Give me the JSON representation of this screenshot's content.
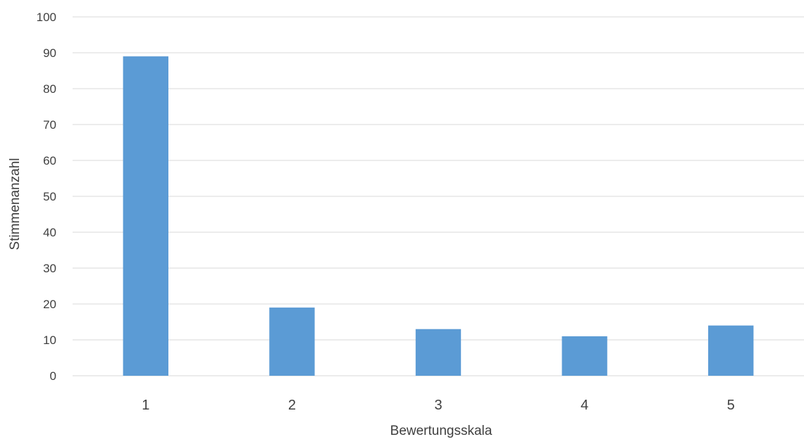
{
  "chart_data": {
    "type": "bar",
    "title": "",
    "xlabel": "Bewertungsskala",
    "ylabel": "Stimmenanzahl",
    "categories": [
      "1",
      "2",
      "3",
      "4",
      "5"
    ],
    "values": [
      89,
      19,
      13,
      11,
      14
    ],
    "ylim": [
      0,
      100
    ],
    "yticks": [
      0,
      10,
      20,
      30,
      40,
      50,
      60,
      70,
      80,
      90,
      100
    ],
    "grid": true,
    "legend": "none",
    "bar_color": "#5b9bd5"
  }
}
